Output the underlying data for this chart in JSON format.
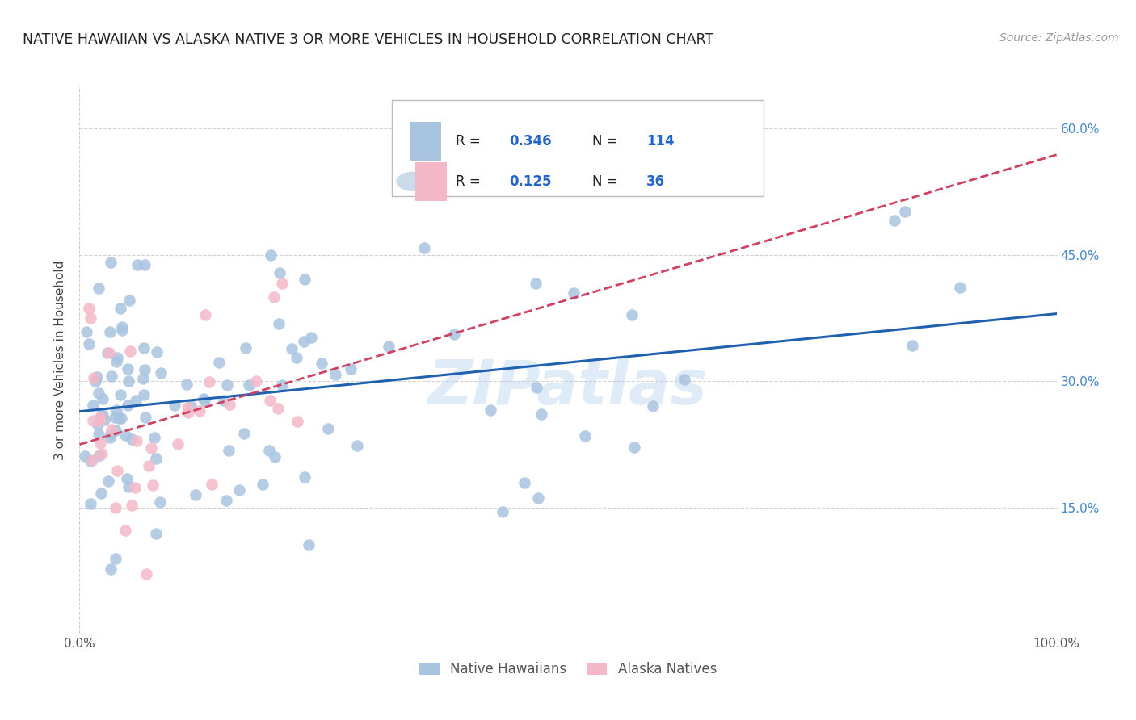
{
  "title": "NATIVE HAWAIIAN VS ALASKA NATIVE 3 OR MORE VEHICLES IN HOUSEHOLD CORRELATION CHART",
  "source": "Source: ZipAtlas.com",
  "ylabel": "3 or more Vehicles in Household",
  "xlim": [
    0,
    100
  ],
  "ylim": [
    0,
    65
  ],
  "ytick_positions": [
    0,
    15,
    30,
    45,
    60
  ],
  "ytick_labels_right": [
    "",
    "15.0%",
    "30.0%",
    "45.0%",
    "60.0%"
  ],
  "xtick_positions": [
    0,
    100
  ],
  "xtick_labels": [
    "0.0%",
    "100.0%"
  ],
  "legend_r1": "R = 0.346",
  "legend_n1": "N = 114",
  "legend_r2": "R =  0.125",
  "legend_n2": "N =  36",
  "blue_color": "#a8c4e0",
  "pink_color": "#f4b8c8",
  "line_blue": "#2060b0",
  "line_pink": "#d04060",
  "watermark": "ZIPatlas",
  "background": "#ffffff",
  "grid_color": "#cccccc",
  "title_color": "#222222",
  "right_ytick_color": "#4488cc",
  "legend_text_color": "#222222",
  "legend_val_color": "#2266cc",
  "nh_seed": 42,
  "an_seed": 123,
  "nh_R": 0.346,
  "nh_N": 114,
  "an_R": 0.125,
  "an_N": 36
}
